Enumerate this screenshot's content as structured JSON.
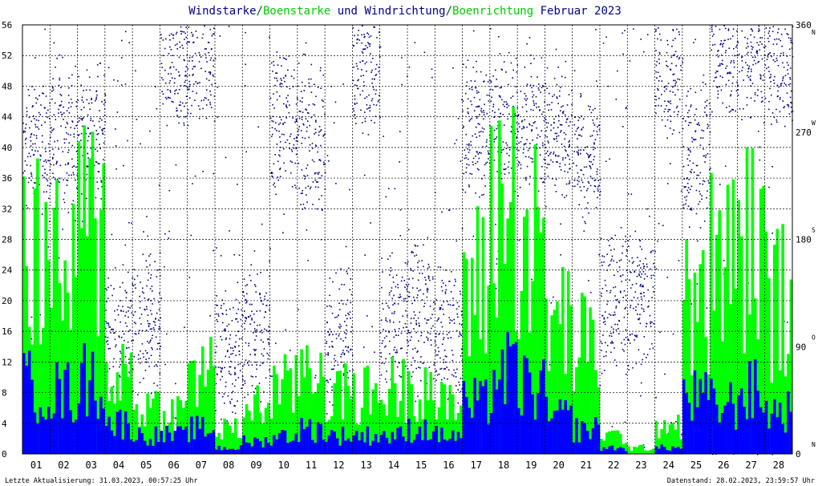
{
  "title": {
    "parts": [
      {
        "text": "Windstarke",
        "color": "#00008b"
      },
      {
        "text": "/",
        "color": "#006400"
      },
      {
        "text": "Boenstarke",
        "color": "#00cc00"
      },
      {
        "text": " und ",
        "color": "#00008b"
      },
      {
        "text": "Windrichtung",
        "color": "#00008b"
      },
      {
        "text": "/",
        "color": "#006400"
      },
      {
        "text": "Boenrichtung",
        "color": "#00cc00"
      },
      {
        "text": " Februar 2023",
        "color": "#00008b"
      }
    ]
  },
  "footer": {
    "left": "Letzte Aktualisierung: 31.03.2023, 00:57:25 Uhr",
    "right": "Datenstand: 28.02.2023, 23:59:57 Uhr"
  },
  "colors": {
    "wind": "#0000ff",
    "gust": "#00ff00",
    "direction": "#000080",
    "grid": "#000000",
    "text": "#000000"
  },
  "chart_data": {
    "type": "area",
    "title": "Windstarke/Boenstarke und Windrichtung/Boenrichtung Februar 2023",
    "x_tick_labels": [
      "01",
      "02",
      "03",
      "04",
      "05",
      "06",
      "07",
      "08",
      "09",
      "10",
      "11",
      "12",
      "13",
      "14",
      "15",
      "16",
      "17",
      "18",
      "19",
      "20",
      "21",
      "22",
      "23",
      "24",
      "25",
      "26",
      "27",
      "28"
    ],
    "left_axis": {
      "ticks": [
        0,
        4,
        8,
        12,
        16,
        20,
        24,
        28,
        32,
        36,
        40,
        44,
        48,
        52,
        56
      ],
      "ylim": [
        0,
        56
      ]
    },
    "right_axis": {
      "ticks": [
        0,
        90,
        180,
        270,
        360
      ],
      "compass": [
        "N",
        "O",
        "S",
        "W",
        "N"
      ],
      "ylim": [
        0,
        360
      ]
    },
    "grid": true,
    "series": [
      {
        "name": "Windstarke",
        "color": "#0000ff",
        "daily_values": [
          11,
          10,
          12,
          5,
          3,
          3,
          4,
          1,
          2,
          3,
          4,
          3,
          3,
          3,
          4,
          3,
          8,
          13,
          11,
          6,
          4,
          1,
          0,
          1,
          9,
          8,
          10,
          7
        ]
      },
      {
        "name": "Boenstarke",
        "color": "#00ff00",
        "daily_values": [
          34,
          30,
          38,
          14,
          8,
          7,
          14,
          4,
          8,
          11,
          15,
          10,
          10,
          11,
          12,
          8,
          28,
          42,
          35,
          22,
          18,
          3,
          1,
          5,
          24,
          32,
          35,
          26
        ]
      },
      {
        "name": "Windrichtung",
        "color": "#000080",
        "daily_directions": [
          260,
          265,
          270,
          100,
          110,
          330,
          340,
          90,
          100,
          280,
          260,
          100,
          320,
          110,
          120,
          100,
          270,
          280,
          275,
          270,
          250,
          130,
          130,
          320,
          250,
          340,
          340,
          335
        ]
      }
    ]
  }
}
